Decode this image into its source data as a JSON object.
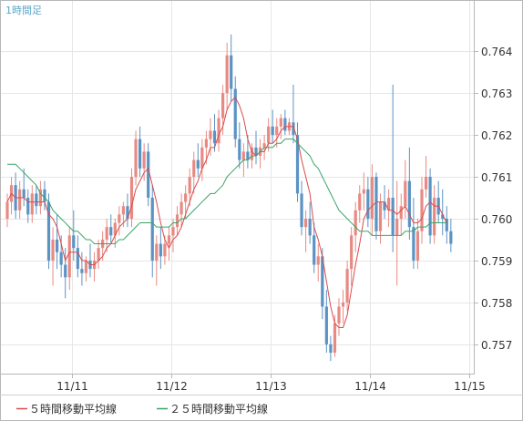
{
  "chart_data": {
    "type": "candlestick",
    "title": "1時間足",
    "x_tick_labels": [
      "11/11",
      "11/12",
      "11/13",
      "11/14",
      "11/15"
    ],
    "x_tick_positions": [
      15.5,
      39.5,
      63.5,
      87.5,
      111.5
    ],
    "y_ticks": [
      0.757,
      0.758,
      0.759,
      0.76,
      0.761,
      0.762,
      0.763,
      0.764
    ],
    "y_tick_labels": [
      "0.757",
      "0.758",
      "0.759",
      "0.760",
      "0.761",
      "0.762",
      "0.763",
      "0.764"
    ],
    "ylim": [
      0.7563,
      0.7652
    ],
    "grid": true,
    "colors": {
      "up": "#e88a84",
      "down": "#5b93c4",
      "ma5": "#d94b4b",
      "ma25": "#3aa56a",
      "grid": "#e6e6e6",
      "border": "#b8b8b8",
      "title": "#5aa7c9"
    },
    "candles": [
      [
        0.76,
        0.7606,
        0.7598,
        0.7604
      ],
      [
        0.7604,
        0.761,
        0.7601,
        0.7608
      ],
      [
        0.7608,
        0.7611,
        0.76,
        0.7602
      ],
      [
        0.7602,
        0.7609,
        0.76,
        0.7607
      ],
      [
        0.7607,
        0.7612,
        0.7603,
        0.7605
      ],
      [
        0.7605,
        0.7607,
        0.7599,
        0.7601
      ],
      [
        0.7601,
        0.7608,
        0.7599,
        0.7606
      ],
      [
        0.7606,
        0.7608,
        0.7601,
        0.7603
      ],
      [
        0.7603,
        0.7609,
        0.7601,
        0.7607
      ],
      [
        0.7607,
        0.7609,
        0.7602,
        0.7604
      ],
      [
        0.7604,
        0.7606,
        0.7588,
        0.759
      ],
      [
        0.759,
        0.7598,
        0.7584,
        0.7595
      ],
      [
        0.7595,
        0.7601,
        0.7588,
        0.7592
      ],
      [
        0.7592,
        0.7596,
        0.7586,
        0.7589
      ],
      [
        0.7589,
        0.7593,
        0.7581,
        0.7586
      ],
      [
        0.7586,
        0.7598,
        0.7583,
        0.7596
      ],
      [
        0.7596,
        0.7602,
        0.759,
        0.7593
      ],
      [
        0.7593,
        0.7596,
        0.7586,
        0.7588
      ],
      [
        0.7588,
        0.7592,
        0.7584,
        0.7587
      ],
      [
        0.7587,
        0.7591,
        0.7585,
        0.759
      ],
      [
        0.759,
        0.7594,
        0.7586,
        0.7588
      ],
      [
        0.7588,
        0.7592,
        0.7585,
        0.759
      ],
      [
        0.759,
        0.7595,
        0.7588,
        0.7593
      ],
      [
        0.7593,
        0.7597,
        0.759,
        0.7595
      ],
      [
        0.7595,
        0.76,
        0.7592,
        0.7598
      ],
      [
        0.7598,
        0.7601,
        0.7594,
        0.7596
      ],
      [
        0.7596,
        0.76,
        0.7593,
        0.7599
      ],
      [
        0.7599,
        0.7603,
        0.7596,
        0.7601
      ],
      [
        0.7601,
        0.7604,
        0.7598,
        0.7603
      ],
      [
        0.7603,
        0.7606,
        0.7598,
        0.76
      ],
      [
        0.76,
        0.7612,
        0.7598,
        0.761
      ],
      [
        0.761,
        0.7621,
        0.7608,
        0.7619
      ],
      [
        0.7619,
        0.7622,
        0.761,
        0.7612
      ],
      [
        0.7612,
        0.7618,
        0.7609,
        0.7616
      ],
      [
        0.7616,
        0.7618,
        0.7603,
        0.7605
      ],
      [
        0.7605,
        0.7608,
        0.7586,
        0.759
      ],
      [
        0.759,
        0.7596,
        0.7584,
        0.7594
      ],
      [
        0.7594,
        0.7598,
        0.7588,
        0.7591
      ],
      [
        0.7591,
        0.7596,
        0.7589,
        0.7594
      ],
      [
        0.7594,
        0.7598,
        0.759,
        0.7596
      ],
      [
        0.7596,
        0.76,
        0.7592,
        0.7598
      ],
      [
        0.7598,
        0.7603,
        0.7596,
        0.7601
      ],
      [
        0.7601,
        0.7606,
        0.7598,
        0.7604
      ],
      [
        0.7604,
        0.7608,
        0.76,
        0.7606
      ],
      [
        0.7606,
        0.7612,
        0.7603,
        0.761
      ],
      [
        0.761,
        0.7616,
        0.7606,
        0.7614
      ],
      [
        0.7614,
        0.7618,
        0.761,
        0.7612
      ],
      [
        0.7612,
        0.7619,
        0.7609,
        0.7617
      ],
      [
        0.7617,
        0.7621,
        0.7613,
        0.7619
      ],
      [
        0.7619,
        0.7624,
        0.7615,
        0.7621
      ],
      [
        0.7621,
        0.7625,
        0.7616,
        0.7618
      ],
      [
        0.7618,
        0.7626,
        0.7616,
        0.7624
      ],
      [
        0.7624,
        0.7632,
        0.762,
        0.763
      ],
      [
        0.763,
        0.7642,
        0.7626,
        0.7639
      ],
      [
        0.7639,
        0.7644,
        0.7628,
        0.7631
      ],
      [
        0.7631,
        0.7634,
        0.7617,
        0.7619
      ],
      [
        0.7619,
        0.7623,
        0.7612,
        0.7614
      ],
      [
        0.7614,
        0.7618,
        0.761,
        0.7616
      ],
      [
        0.7616,
        0.762,
        0.7612,
        0.7614
      ],
      [
        0.7614,
        0.7618,
        0.7612,
        0.7617
      ],
      [
        0.7617,
        0.7621,
        0.7613,
        0.7615
      ],
      [
        0.7615,
        0.7619,
        0.7612,
        0.7617
      ],
      [
        0.7617,
        0.762,
        0.7614,
        0.7618
      ],
      [
        0.7618,
        0.7624,
        0.7616,
        0.7622
      ],
      [
        0.7622,
        0.7626,
        0.7618,
        0.762
      ],
      [
        0.762,
        0.7624,
        0.7617,
        0.7622
      ],
      [
        0.7622,
        0.7625,
        0.7619,
        0.7624
      ],
      [
        0.7624,
        0.7626,
        0.762,
        0.7621
      ],
      [
        0.7621,
        0.7624,
        0.762,
        0.7623
      ],
      [
        0.7623,
        0.7632,
        0.7618,
        0.762
      ],
      [
        0.762,
        0.7623,
        0.7604,
        0.7606
      ],
      [
        0.7606,
        0.7609,
        0.7596,
        0.7598
      ],
      [
        0.7598,
        0.7602,
        0.7592,
        0.76
      ],
      [
        0.76,
        0.7604,
        0.7594,
        0.7596
      ],
      [
        0.7596,
        0.7599,
        0.7587,
        0.7589
      ],
      [
        0.7589,
        0.7594,
        0.7585,
        0.7591
      ],
      [
        0.7591,
        0.7593,
        0.7576,
        0.7579
      ],
      [
        0.7579,
        0.7583,
        0.7568,
        0.757
      ],
      [
        0.757,
        0.7572,
        0.7566,
        0.7568
      ],
      [
        0.7568,
        0.7577,
        0.7567,
        0.7575
      ],
      [
        0.7575,
        0.7581,
        0.7572,
        0.7579
      ],
      [
        0.7579,
        0.7583,
        0.7575,
        0.758
      ],
      [
        0.758,
        0.759,
        0.7578,
        0.7588
      ],
      [
        0.7588,
        0.7598,
        0.7584,
        0.7596
      ],
      [
        0.7596,
        0.7604,
        0.7592,
        0.7602
      ],
      [
        0.7602,
        0.7608,
        0.7599,
        0.7606
      ],
      [
        0.7606,
        0.7611,
        0.7602,
        0.7607
      ],
      [
        0.7607,
        0.761,
        0.7598,
        0.76
      ],
      [
        0.76,
        0.7613,
        0.7596,
        0.761
      ],
      [
        0.761,
        0.7611,
        0.7595,
        0.7597
      ],
      [
        0.7597,
        0.7606,
        0.7594,
        0.7604
      ],
      [
        0.7604,
        0.7608,
        0.76,
        0.7602
      ],
      [
        0.7602,
        0.7607,
        0.7598,
        0.7605
      ],
      [
        0.7605,
        0.7632,
        0.7592,
        0.7596
      ],
      [
        0.7596,
        0.7609,
        0.7584,
        0.76
      ],
      [
        0.76,
        0.7606,
        0.7596,
        0.7603
      ],
      [
        0.7603,
        0.7614,
        0.76,
        0.7609
      ],
      [
        0.7609,
        0.7617,
        0.7595,
        0.7598
      ],
      [
        0.7598,
        0.7605,
        0.7588,
        0.759
      ],
      [
        0.759,
        0.76,
        0.7588,
        0.7597
      ],
      [
        0.7597,
        0.761,
        0.7594,
        0.7607
      ],
      [
        0.7607,
        0.7615,
        0.7605,
        0.761
      ],
      [
        0.761,
        0.7612,
        0.7594,
        0.7596
      ],
      [
        0.7596,
        0.7608,
        0.7594,
        0.7605
      ],
      [
        0.7605,
        0.7609,
        0.7599,
        0.7601
      ],
      [
        0.7601,
        0.7607,
        0.7596,
        0.76
      ],
      [
        0.76,
        0.7603,
        0.7594,
        0.7597
      ],
      [
        0.7597,
        0.76,
        0.7592,
        0.7594
      ]
    ],
    "series": [
      {
        "name": "５時間移動平均線",
        "color": "#d94b4b",
        "values": [
          0.7604,
          0.7606,
          0.7605,
          0.7605,
          0.7605,
          0.7604,
          0.7604,
          0.7604,
          0.7604,
          0.7604,
          0.7601,
          0.76,
          0.7598,
          0.7594,
          0.759,
          0.7592,
          0.7592,
          0.7592,
          0.759,
          0.759,
          0.7589,
          0.7589,
          0.759,
          0.7591,
          0.7593,
          0.7594,
          0.7596,
          0.7598,
          0.7599,
          0.76,
          0.7603,
          0.7607,
          0.7609,
          0.7611,
          0.7612,
          0.7608,
          0.7604,
          0.7599,
          0.7595,
          0.7593,
          0.7595,
          0.7596,
          0.7598,
          0.7601,
          0.7604,
          0.7607,
          0.7609,
          0.7612,
          0.7614,
          0.7617,
          0.7617,
          0.762,
          0.7622,
          0.7626,
          0.7628,
          0.7629,
          0.7627,
          0.7624,
          0.7619,
          0.7616,
          0.7615,
          0.7616,
          0.7616,
          0.7618,
          0.7618,
          0.7619,
          0.7621,
          0.7622,
          0.7622,
          0.7622,
          0.7619,
          0.7614,
          0.761,
          0.7606,
          0.7598,
          0.7595,
          0.7591,
          0.7585,
          0.7579,
          0.7575,
          0.7574,
          0.7574,
          0.7577,
          0.7583,
          0.7589,
          0.7594,
          0.76,
          0.7602,
          0.7603,
          0.7604,
          0.7604,
          0.7604,
          0.7602,
          0.7602,
          0.7601,
          0.7602,
          0.7603,
          0.7601,
          0.7599,
          0.7599,
          0.76,
          0.7603,
          0.7604,
          0.7603,
          0.7603,
          0.7601,
          0.7599
        ]
      },
      {
        "name": "２５時間移動平均線",
        "color": "#3aa56a",
        "values": [
          0.7613,
          0.7613,
          0.7613,
          0.7612,
          0.7611,
          0.761,
          0.7609,
          0.7608,
          0.7606,
          0.7605,
          0.7604,
          0.7602,
          0.7601,
          0.76,
          0.7599,
          0.7598,
          0.7597,
          0.7597,
          0.7596,
          0.7595,
          0.7595,
          0.7594,
          0.7594,
          0.7594,
          0.7594,
          0.7594,
          0.7594,
          0.7595,
          0.7595,
          0.7596,
          0.7597,
          0.7598,
          0.7599,
          0.7599,
          0.7599,
          0.7599,
          0.7598,
          0.7598,
          0.7598,
          0.7598,
          0.7599,
          0.7599,
          0.76,
          0.76,
          0.7601,
          0.7602,
          0.7603,
          0.7604,
          0.7605,
          0.7606,
          0.7606,
          0.7607,
          0.7608,
          0.761,
          0.7611,
          0.7612,
          0.7613,
          0.7614,
          0.7614,
          0.7615,
          0.7615,
          0.7616,
          0.7617,
          0.7617,
          0.7617,
          0.7618,
          0.7618,
          0.7619,
          0.7619,
          0.7619,
          0.7618,
          0.7617,
          0.7616,
          0.7615,
          0.7613,
          0.7612,
          0.761,
          0.7608,
          0.7606,
          0.7604,
          0.7602,
          0.7601,
          0.76,
          0.7599,
          0.7598,
          0.7597,
          0.7597,
          0.7597,
          0.7596,
          0.7596,
          0.7596,
          0.7596,
          0.7596,
          0.7596,
          0.7596,
          0.7596,
          0.7597,
          0.7597,
          0.7597,
          0.7598,
          0.7598,
          0.7598,
          0.7599,
          0.7599,
          0.7599,
          0.7599,
          0.7599
        ]
      }
    ],
    "legend": [
      {
        "label": "５時間移動平均線",
        "color": "#d94b4b"
      },
      {
        "label": "２５時間移動平均線",
        "color": "#3aa56a"
      }
    ]
  }
}
